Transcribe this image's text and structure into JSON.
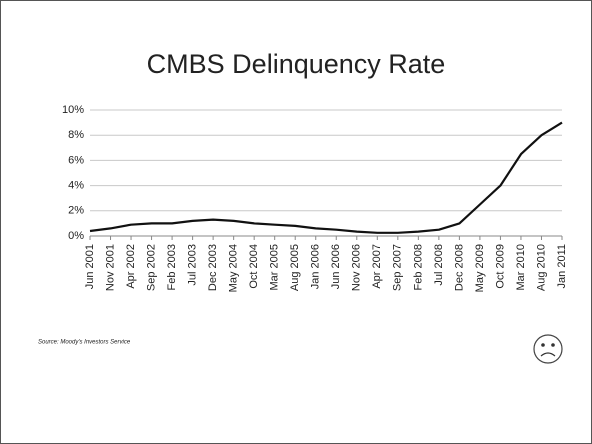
{
  "chart_data": {
    "type": "line",
    "title": "CMBS Delinquency Rate",
    "source": "Source: Moody's Investors Service",
    "categories": [
      "Jun 2001",
      "Nov 2001",
      "Apr 2002",
      "Sep 2002",
      "Feb 2003",
      "Jul 2003",
      "Dec 2003",
      "May 2004",
      "Oct 2004",
      "Mar 2005",
      "Aug 2005",
      "Jan 2006",
      "Jun 2006",
      "Nov 2006",
      "Apr 2007",
      "Sep 2007",
      "Feb 2008",
      "Jul 2008",
      "Dec 2008",
      "May 2009",
      "Oct 2009",
      "Mar 2010",
      "Aug 2010",
      "Jan 2011"
    ],
    "values": [
      0.4,
      0.6,
      0.9,
      1.0,
      1.0,
      1.2,
      1.3,
      1.2,
      1.0,
      0.9,
      0.8,
      0.6,
      0.5,
      0.35,
      0.25,
      0.25,
      0.35,
      0.5,
      1.0,
      2.5,
      4.0,
      6.5,
      8.0,
      9.0
    ],
    "color": "#111111",
    "ylim": [
      0,
      10
    ],
    "yticks": [
      {
        "value": 0,
        "label": "0%"
      },
      {
        "value": 2,
        "label": "2%"
      },
      {
        "value": 4,
        "label": "4%"
      },
      {
        "value": 6,
        "label": "6%"
      },
      {
        "value": 8,
        "label": "8%"
      },
      {
        "value": 10,
        "label": "10%"
      }
    ],
    "grid": true
  }
}
